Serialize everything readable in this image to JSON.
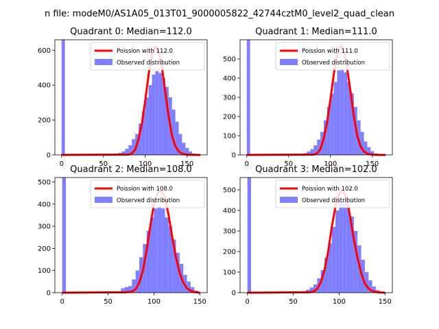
{
  "figure_title": "n file: modeM0/AS1A05_013T01_9000005822_42744cztM0_level2_quad_clean",
  "colors": {
    "hist": "#7f7fff",
    "fit": "#ff0000"
  },
  "chart_data": [
    {
      "type": "bar",
      "title": "Quadrant 0: Median=112.0",
      "legend": {
        "placement": "top-right",
        "entries": [
          "Poission with 112.0",
          "Observed distribution"
        ]
      },
      "xlim": [
        -8,
        174
      ],
      "ylim": [
        0,
        660
      ],
      "xticks": [
        0,
        50,
        100,
        150
      ],
      "yticks": [
        0,
        200,
        400,
        600
      ],
      "hist_x": [
        0,
        60,
        64,
        68,
        72,
        76,
        80,
        84,
        88,
        92,
        96,
        100,
        104,
        108,
        112,
        116,
        120,
        124,
        128,
        132,
        136,
        140,
        144,
        148,
        152,
        156
      ],
      "hist_values": [
        660,
        4,
        8,
        12,
        20,
        35,
        55,
        90,
        120,
        180,
        250,
        330,
        400,
        460,
        480,
        470,
        440,
        390,
        330,
        260,
        190,
        120,
        70,
        40,
        20,
        8
      ],
      "bin_width": 4,
      "fit_x": [
        0,
        80,
        84,
        88,
        92,
        96,
        100,
        104,
        108,
        112,
        116,
        120,
        124,
        128,
        132,
        136,
        140,
        144,
        148,
        152,
        158,
        166
      ],
      "fit_y": [
        0,
        2,
        8,
        30,
        90,
        180,
        310,
        460,
        580,
        620,
        600,
        500,
        360,
        220,
        110,
        50,
        20,
        8,
        3,
        1,
        0,
        0
      ]
    },
    {
      "type": "bar",
      "title": "Quadrant 1: Median=111.0",
      "legend": {
        "placement": "top-right",
        "entries": [
          "Poission with 111.0",
          "Observed distribution"
        ]
      },
      "xlim": [
        -8,
        174
      ],
      "ylim": [
        0,
        600
      ],
      "xticks": [
        0,
        50,
        100,
        150
      ],
      "yticks": [
        0,
        100,
        200,
        300,
        400,
        500
      ],
      "hist_x": [
        0,
        64,
        68,
        72,
        76,
        80,
        84,
        88,
        92,
        96,
        100,
        104,
        108,
        112,
        116,
        120,
        124,
        128,
        132,
        136,
        140,
        144,
        148,
        152
      ],
      "hist_values": [
        600,
        5,
        10,
        18,
        30,
        50,
        80,
        120,
        180,
        250,
        320,
        380,
        440,
        450,
        430,
        380,
        320,
        250,
        180,
        120,
        70,
        40,
        20,
        8
      ],
      "bin_width": 4,
      "fit_x": [
        0,
        80,
        84,
        88,
        92,
        96,
        100,
        104,
        108,
        112,
        116,
        120,
        124,
        128,
        132,
        136,
        140,
        144,
        148,
        152,
        158,
        166
      ],
      "fit_y": [
        0,
        2,
        8,
        30,
        85,
        170,
        290,
        420,
        530,
        570,
        545,
        450,
        330,
        200,
        100,
        45,
        18,
        7,
        3,
        1,
        0,
        0
      ]
    },
    {
      "type": "bar",
      "title": "Quadrant 2: Median=108.0",
      "legend": {
        "placement": "top-right",
        "entries": [
          "Poission with 108.0",
          "Observed distribution"
        ]
      },
      "xlim": [
        -8,
        158
      ],
      "ylim": [
        0,
        520
      ],
      "xticks": [
        0,
        50,
        100,
        150
      ],
      "yticks": [
        0,
        100,
        200,
        300,
        400,
        500
      ],
      "hist_x": [
        0,
        64,
        68,
        72,
        76,
        80,
        84,
        88,
        92,
        96,
        100,
        104,
        108,
        112,
        116,
        120,
        124,
        128,
        132,
        136,
        140,
        144
      ],
      "hist_values": [
        520,
        20,
        25,
        30,
        60,
        100,
        160,
        220,
        280,
        340,
        380,
        390,
        380,
        340,
        300,
        240,
        180,
        130,
        80,
        50,
        25,
        10
      ],
      "bin_width": 4,
      "fit_x": [
        0,
        70,
        76,
        80,
        84,
        88,
        92,
        96,
        100,
        104,
        108,
        112,
        116,
        120,
        124,
        128,
        132,
        136,
        140,
        144,
        150
      ],
      "fit_y": [
        0,
        2,
        5,
        15,
        45,
        100,
        190,
        300,
        400,
        450,
        460,
        430,
        350,
        250,
        160,
        90,
        45,
        20,
        8,
        3,
        0
      ]
    },
    {
      "type": "bar",
      "title": "Quadrant 3: Median=102.0",
      "legend": {
        "placement": "top-right",
        "entries": [
          "Poission with 102.0",
          "Observed distribution"
        ]
      },
      "xlim": [
        -8,
        158
      ],
      "ylim": [
        0,
        560
      ],
      "xticks": [
        0,
        50,
        100,
        150
      ],
      "yticks": [
        0,
        100,
        200,
        300,
        400,
        500
      ],
      "hist_x": [
        0,
        60,
        64,
        68,
        72,
        76,
        80,
        84,
        88,
        92,
        96,
        100,
        104,
        108,
        112,
        116,
        120,
        124,
        128,
        132,
        136,
        140
      ],
      "hist_values": [
        560,
        8,
        15,
        25,
        40,
        70,
        110,
        170,
        240,
        320,
        400,
        440,
        450,
        420,
        370,
        300,
        230,
        160,
        100,
        60,
        30,
        12
      ],
      "bin_width": 4,
      "fit_x": [
        0,
        68,
        72,
        76,
        80,
        84,
        88,
        92,
        96,
        100,
        104,
        108,
        112,
        116,
        120,
        124,
        128,
        132,
        136,
        140,
        146,
        150
      ],
      "fit_y": [
        0,
        2,
        6,
        18,
        50,
        110,
        200,
        320,
        420,
        480,
        500,
        460,
        370,
        260,
        170,
        95,
        45,
        20,
        8,
        3,
        1,
        0
      ]
    }
  ]
}
